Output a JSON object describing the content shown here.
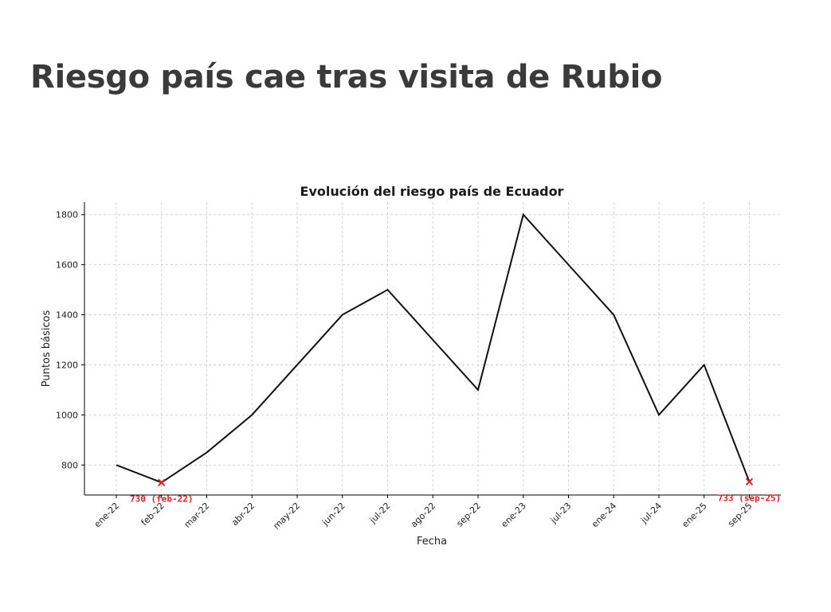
{
  "page": {
    "headline": "Riesgo país cae tras visita de Rubio"
  },
  "chart_data": {
    "type": "line",
    "title": "Evolución del riesgo país de Ecuador",
    "xlabel": "Fecha",
    "ylabel": "Puntos básicos",
    "categories": [
      "ene-22",
      "feb-22",
      "mar-22",
      "abr-22",
      "may-22",
      "jun-22",
      "jul-22",
      "ago-22",
      "sep-22",
      "ene-23",
      "jul-23",
      "ene-24",
      "jul-24",
      "ene-25",
      "sep-25"
    ],
    "yticks": [
      800,
      1000,
      1200,
      1400,
      1600,
      1800
    ],
    "ylim": [
      680,
      1850
    ],
    "grid": true,
    "series": [
      {
        "values": [
          800,
          730,
          850,
          1000,
          1200,
          1400,
          1500,
          1300,
          1100,
          1800,
          1600,
          1400,
          1000,
          1200,
          733
        ],
        "color": "#111111"
      }
    ],
    "markers": [
      {
        "index": 1,
        "value": 730,
        "label": "730 (feb-22)",
        "color": "#e02020",
        "symbol": "x"
      },
      {
        "index": 14,
        "value": 733,
        "label": "733 (sep-25)",
        "color": "#e02020",
        "symbol": "x"
      }
    ]
  }
}
